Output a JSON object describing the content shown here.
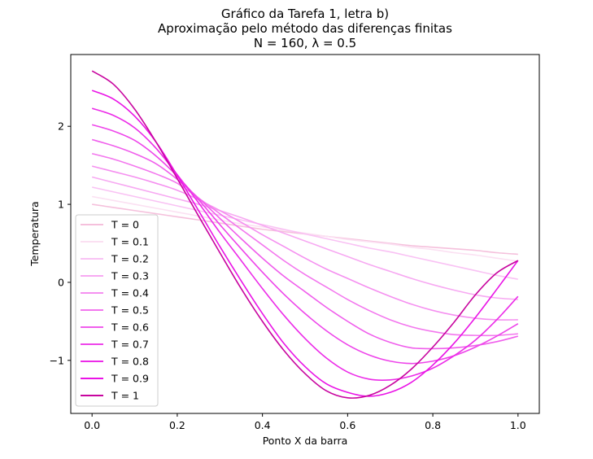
{
  "chart_data": {
    "type": "line",
    "title": "Gráfico da Tarefa 1, letra b)",
    "subtitle": "Aproximação pelo método das diferenças finitas",
    "subtitle2": "N = 160, λ = 0.5",
    "xlabel": "Ponto X da barra",
    "ylabel": "Temperatura",
    "xlim": [
      -0.05,
      1.05
    ],
    "ylim": [
      -1.68,
      2.92
    ],
    "xticks": [
      "0.0",
      "0.2",
      "0.4",
      "0.6",
      "0.8",
      "1.0"
    ],
    "yticks": [
      "−1",
      "0",
      "1",
      "2"
    ],
    "xtick_values": [
      0,
      0.2,
      0.4,
      0.6,
      0.8,
      1.0
    ],
    "ytick_values": [
      -1,
      0,
      1,
      2
    ],
    "grid": false,
    "legend_position": "lower-left",
    "x": [
      0,
      0.05,
      0.1,
      0.15,
      0.2,
      0.25,
      0.3,
      0.35,
      0.4,
      0.45,
      0.5,
      0.55,
      0.6,
      0.65,
      0.7,
      0.75,
      0.8,
      0.85,
      0.9,
      0.95,
      1.0
    ],
    "series": [
      {
        "name": "T = 0",
        "color": "#f5c0dc",
        "values": [
          1.0,
          0.96,
          0.92,
          0.88,
          0.84,
          0.8,
          0.76,
          0.72,
          0.68,
          0.65,
          0.62,
          0.59,
          0.56,
          0.53,
          0.5,
          0.47,
          0.45,
          0.43,
          0.41,
          0.38,
          0.36
        ]
      },
      {
        "name": "T = 0.1",
        "color": "#fbe0f2",
        "values": [
          1.1,
          1.05,
          1.0,
          0.95,
          0.9,
          0.85,
          0.8,
          0.75,
          0.71,
          0.67,
          0.63,
          0.59,
          0.55,
          0.52,
          0.49,
          0.45,
          0.42,
          0.38,
          0.35,
          0.31,
          0.27
        ]
      },
      {
        "name": "T = 0.2",
        "color": "#f9c2f4",
        "values": [
          1.22,
          1.16,
          1.1,
          1.04,
          0.98,
          0.92,
          0.86,
          0.8,
          0.74,
          0.68,
          0.62,
          0.56,
          0.5,
          0.44,
          0.39,
          0.33,
          0.27,
          0.21,
          0.15,
          0.09,
          0.04
        ]
      },
      {
        "name": "T = 0.3",
        "color": "#f7a9f2",
        "values": [
          1.35,
          1.28,
          1.21,
          1.14,
          1.07,
          1.0,
          0.92,
          0.83,
          0.73,
          0.63,
          0.53,
          0.43,
          0.33,
          0.23,
          0.14,
          0.05,
          -0.03,
          -0.1,
          -0.16,
          -0.2,
          -0.22
        ]
      },
      {
        "name": "T = 0.4",
        "color": "#f590f0",
        "values": [
          1.49,
          1.42,
          1.35,
          1.27,
          1.18,
          1.06,
          0.92,
          0.77,
          0.61,
          0.46,
          0.31,
          0.17,
          0.05,
          -0.07,
          -0.18,
          -0.28,
          -0.36,
          -0.42,
          -0.46,
          -0.48,
          -0.48
        ]
      },
      {
        "name": "T = 0.5",
        "color": "#f377ee",
        "values": [
          1.65,
          1.58,
          1.49,
          1.39,
          1.27,
          1.08,
          0.88,
          0.68,
          0.48,
          0.28,
          0.1,
          -0.06,
          -0.22,
          -0.36,
          -0.48,
          -0.57,
          -0.63,
          -0.67,
          -0.68,
          -0.68,
          -0.66
        ]
      },
      {
        "name": "T = 0.6",
        "color": "#f05eec",
        "values": [
          1.83,
          1.75,
          1.65,
          1.52,
          1.32,
          1.08,
          0.82,
          0.56,
          0.31,
          0.08,
          -0.12,
          -0.32,
          -0.5,
          -0.66,
          -0.77,
          -0.84,
          -0.85,
          -0.84,
          -0.81,
          -0.76,
          -0.69
        ]
      },
      {
        "name": "T = 0.7",
        "color": "#ee45ea",
        "values": [
          2.02,
          1.94,
          1.82,
          1.62,
          1.36,
          1.06,
          0.74,
          0.43,
          0.13,
          -0.15,
          -0.4,
          -0.62,
          -0.8,
          -0.93,
          -1.01,
          -1.04,
          -1.01,
          -0.94,
          -0.83,
          -0.69,
          -0.53
        ]
      },
      {
        "name": "T = 0.8",
        "color": "#ec2ce8",
        "values": [
          2.23,
          2.14,
          1.98,
          1.72,
          1.38,
          1.02,
          0.64,
          0.28,
          -0.08,
          -0.42,
          -0.72,
          -0.97,
          -1.15,
          -1.24,
          -1.25,
          -1.2,
          -1.1,
          -0.94,
          -0.74,
          -0.48,
          -0.18
        ]
      },
      {
        "name": "T = 0.9",
        "color": "#ea13e6",
        "values": [
          2.46,
          2.35,
          2.13,
          1.8,
          1.37,
          0.92,
          0.46,
          0.02,
          -0.4,
          -0.78,
          -1.08,
          -1.3,
          -1.41,
          -1.46,
          -1.41,
          -1.28,
          -1.06,
          -0.78,
          -0.45,
          -0.09,
          0.28
        ]
      },
      {
        "name": "T = 1",
        "color": "#c8059f",
        "values": [
          2.71,
          2.54,
          2.22,
          1.8,
          1.33,
          0.85,
          0.38,
          -0.08,
          -0.5,
          -0.87,
          -1.17,
          -1.39,
          -1.48,
          -1.45,
          -1.32,
          -1.11,
          -0.83,
          -0.51,
          -0.16,
          0.12,
          0.28
        ]
      }
    ]
  }
}
